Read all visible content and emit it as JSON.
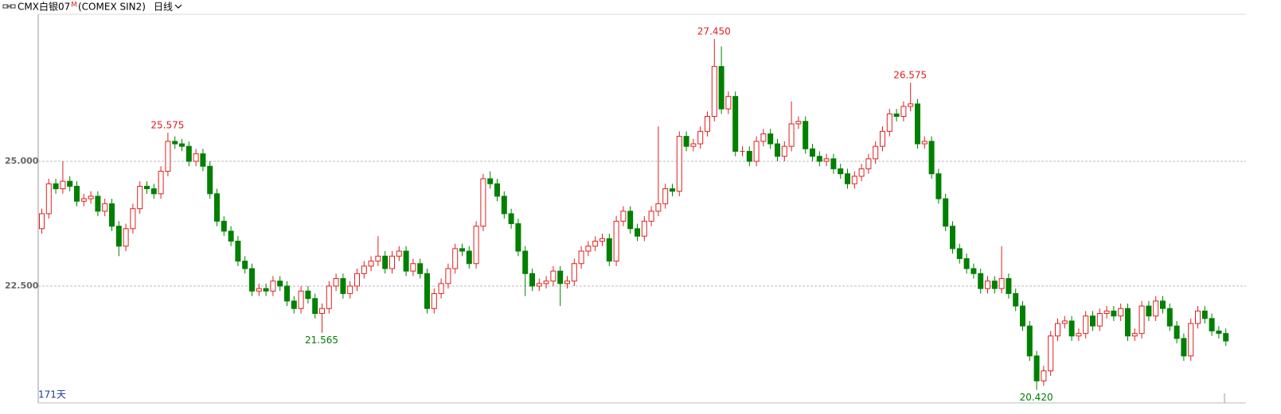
{
  "chart_data": {
    "type": "candlestick",
    "title": "CMX白银07",
    "title_mark": "M",
    "subtitle": "(COMEX SIN2)",
    "period": "日线",
    "footer": "171天",
    "up_color": "#e02020",
    "down_color": "#008000",
    "grid": true,
    "ylim": [
      20.175,
      27.914
    ],
    "yticks": [
      {
        "value": 22.5,
        "label": "22.500"
      },
      {
        "value": 25,
        "label": "25.000"
      }
    ],
    "annotations": [
      {
        "value": 25.575,
        "label": "25.575"
      },
      {
        "value": 21.565,
        "label": "21.565"
      },
      {
        "value": 27.45,
        "label": "27.450"
      },
      {
        "value": 26.575,
        "label": "26.575"
      },
      {
        "value": 20.42,
        "label": "20.420"
      }
    ],
    "open": [
      23.65,
      23.95,
      24.55,
      24.45,
      24.6,
      24.5,
      24.2,
      24.25,
      24.3,
      24.0,
      24.15,
      23.7,
      23.3,
      23.65,
      24.05,
      24.5,
      24.45,
      24.35,
      24.8,
      25.4,
      25.35,
      25.3,
      25.0,
      25.15,
      24.9,
      24.35,
      23.8,
      23.6,
      23.4,
      23.0,
      22.85,
      22.4,
      22.45,
      22.4,
      22.6,
      22.5,
      22.2,
      22.05,
      22.4,
      22.25,
      21.95,
      22.05,
      22.5,
      22.65,
      22.35,
      22.5,
      22.75,
      22.9,
      23.0,
      23.1,
      22.85,
      23.1,
      23.2,
      22.8,
      22.95,
      22.75,
      22.05,
      22.35,
      22.55,
      22.85,
      23.25,
      23.2,
      22.95,
      23.7,
      24.65,
      24.55,
      24.3,
      23.95,
      23.75,
      23.2,
      22.75,
      22.5,
      22.55,
      22.6,
      22.8,
      22.55,
      22.6,
      22.95,
      23.2,
      23.3,
      23.4,
      23.45,
      23.0,
      23.8,
      24.0,
      23.65,
      23.5,
      23.8,
      24.0,
      24.15,
      24.45,
      24.4,
      25.5,
      25.3,
      25.35,
      25.6,
      25.9,
      26.9,
      26.05,
      26.3,
      25.2,
      25.2,
      25.0,
      25.4,
      25.55,
      25.35,
      25.1,
      25.3,
      25.75,
      25.8,
      25.25,
      25.1,
      25.0,
      25.05,
      24.85,
      24.75,
      24.55,
      24.7,
      24.85,
      25.05,
      25.3,
      25.6,
      25.95,
      25.9,
      26.1,
      26.15,
      25.35,
      25.4,
      24.75,
      24.25,
      23.7,
      23.25,
      23.05,
      22.85,
      22.75,
      22.45,
      22.6,
      22.45,
      22.65,
      22.35,
      22.1,
      21.7,
      21.1,
      20.6,
      20.8,
      21.5,
      21.75,
      21.8,
      21.5,
      21.55,
      21.9,
      21.7,
      21.95,
      22.0,
      21.9,
      22.05,
      21.5,
      21.55,
      22.1,
      21.9,
      22.2,
      22.05,
      21.7,
      21.45,
      21.1,
      21.75,
      22.0,
      21.85,
      21.6,
      21.55
    ],
    "high": [
      24.05,
      24.65,
      24.65,
      25.0,
      24.7,
      24.6,
      24.35,
      24.4,
      24.4,
      24.25,
      24.25,
      23.8,
      23.75,
      24.15,
      24.6,
      24.6,
      24.55,
      24.9,
      25.575,
      25.5,
      25.45,
      25.4,
      25.25,
      25.25,
      25.0,
      24.45,
      23.9,
      23.7,
      23.5,
      23.1,
      22.95,
      22.55,
      22.55,
      22.7,
      22.7,
      22.6,
      22.3,
      22.5,
      22.5,
      22.35,
      22.15,
      22.6,
      22.75,
      22.75,
      22.6,
      22.85,
      23.0,
      23.1,
      23.5,
      23.2,
      23.2,
      23.3,
      23.3,
      23.05,
      23.05,
      22.85,
      22.45,
      22.65,
      22.95,
      23.35,
      23.35,
      23.3,
      23.8,
      24.75,
      24.8,
      24.65,
      24.4,
      24.05,
      23.85,
      23.3,
      22.85,
      22.65,
      22.7,
      22.9,
      22.9,
      22.7,
      23.05,
      23.3,
      23.4,
      23.5,
      23.55,
      23.55,
      23.9,
      24.1,
      24.1,
      23.75,
      23.9,
      24.1,
      25.7,
      24.55,
      24.55,
      25.6,
      25.6,
      25.45,
      25.7,
      26.0,
      27.45,
      27.3,
      26.4,
      26.4,
      25.3,
      25.3,
      25.5,
      25.65,
      25.65,
      25.45,
      25.4,
      26.2,
      25.9,
      25.9,
      25.35,
      25.2,
      25.15,
      25.15,
      24.95,
      24.85,
      24.8,
      24.95,
      25.15,
      25.4,
      25.7,
      26.05,
      26.05,
      26.2,
      26.575,
      26.25,
      25.5,
      25.5,
      24.85,
      24.35,
      23.8,
      23.35,
      23.15,
      22.95,
      22.85,
      22.7,
      22.7,
      23.3,
      22.75,
      22.45,
      22.2,
      21.8,
      21.2,
      20.9,
      21.6,
      21.85,
      21.9,
      21.9,
      21.65,
      22.0,
      22.0,
      22.05,
      22.1,
      22.1,
      22.15,
      22.15,
      21.65,
      22.2,
      22.2,
      22.3,
      22.3,
      22.15,
      21.8,
      21.55,
      21.85,
      22.1,
      22.1,
      21.95,
      21.7,
      21.65
    ],
    "low": [
      23.55,
      23.85,
      24.35,
      24.35,
      24.4,
      24.1,
      24.1,
      24.15,
      23.9,
      23.9,
      23.6,
      23.1,
      23.2,
      23.55,
      23.95,
      24.35,
      24.25,
      24.25,
      24.7,
      25.25,
      25.2,
      24.9,
      24.9,
      24.8,
      24.25,
      23.7,
      23.5,
      23.3,
      22.9,
      22.75,
      22.3,
      22.3,
      22.3,
      22.3,
      22.4,
      22.1,
      21.95,
      21.95,
      22.15,
      21.85,
      21.565,
      21.95,
      22.4,
      22.25,
      22.25,
      22.4,
      22.65,
      22.8,
      22.9,
      22.75,
      22.75,
      23.0,
      22.7,
      22.7,
      22.65,
      21.95,
      21.95,
      22.25,
      22.45,
      22.75,
      23.1,
      22.85,
      22.85,
      23.6,
      24.45,
      24.2,
      23.85,
      23.65,
      23.1,
      22.3,
      22.4,
      22.4,
      22.45,
      22.5,
      22.1,
      22.45,
      22.5,
      22.85,
      23.1,
      23.2,
      23.3,
      22.9,
      22.9,
      23.7,
      23.55,
      23.4,
      23.4,
      23.7,
      23.9,
      24.05,
      24.3,
      24.3,
      25.2,
      25.2,
      25.25,
      25.5,
      25.8,
      25.95,
      25.95,
      25.1,
      25.1,
      24.9,
      24.9,
      25.3,
      25.25,
      25.0,
      25.0,
      25.2,
      25.65,
      25.15,
      25.0,
      24.9,
      24.9,
      24.75,
      24.65,
      24.45,
      24.45,
      24.6,
      24.75,
      24.95,
      25.2,
      25.5,
      25.8,
      25.8,
      26.0,
      25.25,
      25.25,
      24.65,
      24.15,
      23.6,
      23.15,
      22.95,
      22.75,
      22.65,
      22.35,
      22.35,
      22.35,
      22.35,
      22.25,
      22.0,
      21.6,
      21.0,
      20.42,
      20.5,
      20.7,
      21.4,
      21.65,
      21.4,
      21.4,
      21.45,
      21.6,
      21.6,
      21.85,
      21.8,
      21.8,
      21.4,
      21.4,
      21.45,
      21.8,
      21.8,
      21.95,
      21.6,
      21.35,
      21.0,
      21.0,
      21.65,
      21.75,
      21.5,
      21.45,
      21.3
    ],
    "close": [
      23.95,
      24.55,
      24.45,
      24.6,
      24.5,
      24.2,
      24.25,
      24.3,
      24.0,
      24.15,
      23.7,
      23.3,
      23.65,
      24.05,
      24.5,
      24.45,
      24.35,
      24.8,
      25.4,
      25.35,
      25.3,
      25.0,
      25.15,
      24.9,
      24.35,
      23.8,
      23.6,
      23.4,
      23.0,
      22.85,
      22.4,
      22.45,
      22.4,
      22.6,
      22.5,
      22.2,
      22.05,
      22.4,
      22.25,
      21.95,
      22.05,
      22.5,
      22.65,
      22.35,
      22.5,
      22.75,
      22.9,
      23.0,
      23.1,
      22.85,
      23.1,
      23.2,
      22.8,
      22.95,
      22.75,
      22.05,
      22.35,
      22.55,
      22.85,
      23.25,
      23.2,
      22.95,
      23.7,
      24.65,
      24.55,
      24.3,
      23.95,
      23.75,
      23.2,
      22.75,
      22.5,
      22.55,
      22.6,
      22.8,
      22.55,
      22.6,
      22.95,
      23.2,
      23.3,
      23.4,
      23.45,
      23.0,
      23.8,
      24.0,
      23.65,
      23.5,
      23.8,
      24.0,
      24.15,
      24.45,
      24.4,
      25.5,
      25.3,
      25.35,
      25.6,
      25.9,
      26.9,
      26.05,
      26.3,
      25.2,
      25.2,
      25.0,
      25.4,
      25.55,
      25.35,
      25.1,
      25.3,
      25.75,
      25.8,
      25.25,
      25.1,
      25.0,
      25.05,
      24.85,
      24.75,
      24.55,
      24.7,
      24.85,
      25.05,
      25.3,
      25.6,
      25.95,
      25.9,
      26.1,
      26.15,
      25.35,
      25.4,
      24.75,
      24.25,
      23.7,
      23.25,
      23.05,
      22.85,
      22.75,
      22.45,
      22.6,
      22.45,
      22.65,
      22.35,
      22.1,
      21.7,
      21.1,
      20.6,
      20.8,
      21.5,
      21.75,
      21.8,
      21.5,
      21.55,
      21.9,
      21.7,
      21.95,
      22.0,
      21.9,
      22.05,
      21.5,
      21.55,
      22.1,
      21.9,
      22.2,
      22.05,
      21.7,
      21.45,
      21.1,
      21.75,
      22.0,
      21.85,
      21.6,
      21.55,
      21.4
    ]
  }
}
